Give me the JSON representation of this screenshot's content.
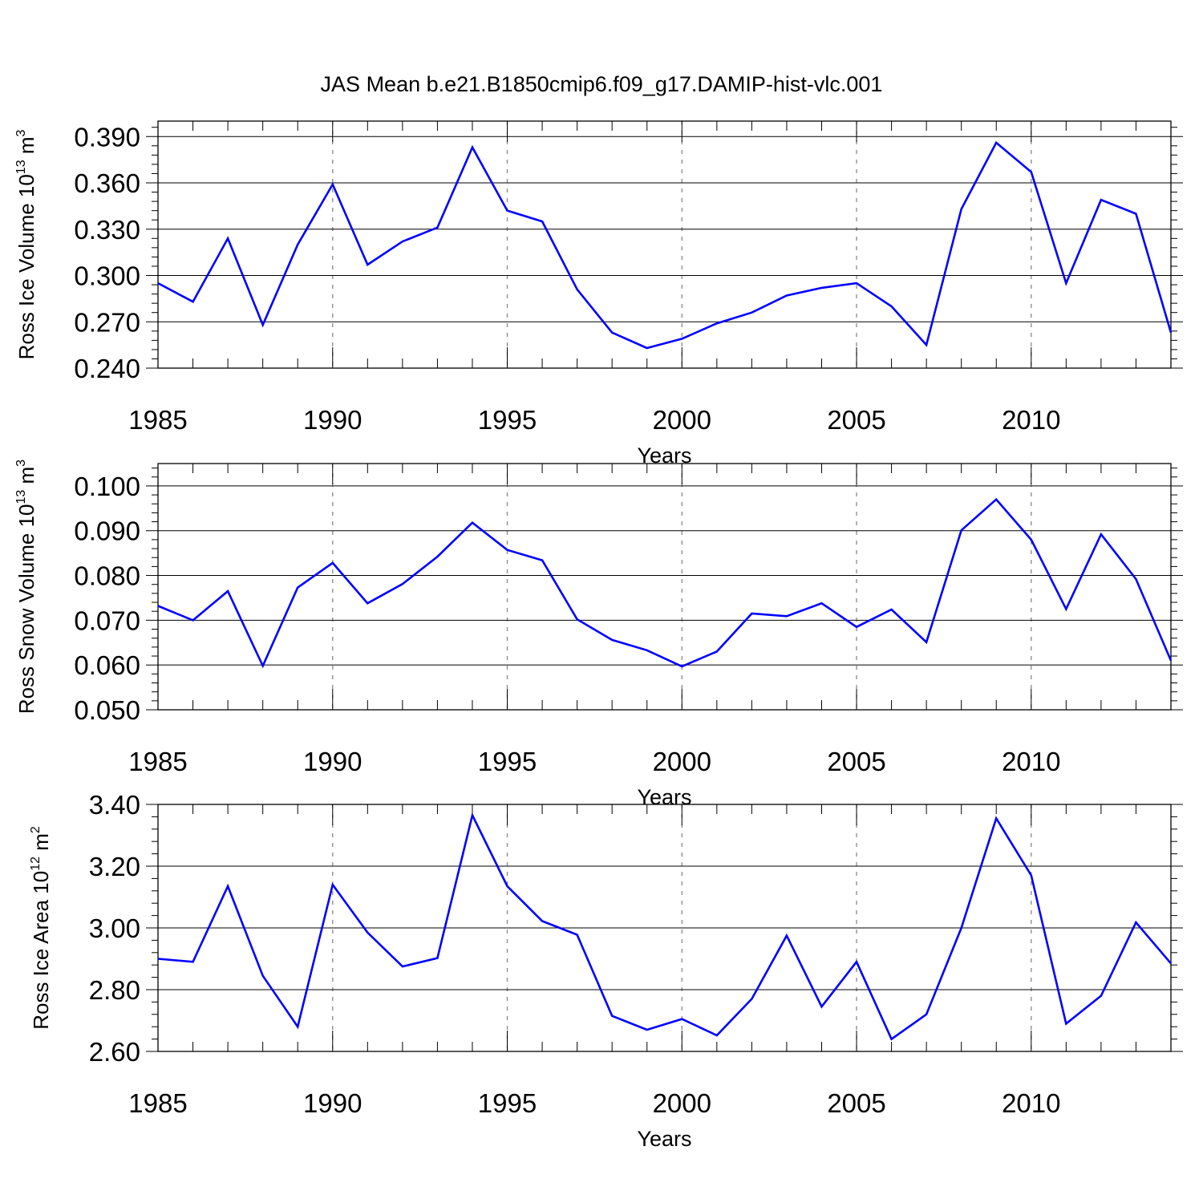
{
  "figure_title": "JAS Mean b.e21.B1850cmip6.f09_g17.DAMIP-hist-vlc.001",
  "colors": {
    "line": "#0000ff",
    "axis": "#000000",
    "grid": "#888888"
  },
  "chart_data": [
    {
      "type": "line",
      "ylabel": {
        "prefix": "Ross Ice Volume 10",
        "exp": "13",
        "unit": " m",
        "unit_exp": "3"
      },
      "xlabel": "Years",
      "xlim": [
        1985,
        2014
      ],
      "ylim": [
        0.24,
        0.4
      ],
      "yticks": [
        "0.240",
        "0.270",
        "0.300",
        "0.330",
        "0.360",
        "0.390"
      ],
      "xticks": [
        "1985",
        "1990",
        "1995",
        "2000",
        "2005",
        "2010"
      ],
      "grid": "vertical dashed at major x ticks",
      "x": [
        1985,
        1986,
        1987,
        1988,
        1989,
        1990,
        1991,
        1992,
        1993,
        1994,
        1995,
        1996,
        1997,
        1998,
        1999,
        2000,
        2001,
        2002,
        2003,
        2004,
        2005,
        2006,
        2007,
        2008,
        2009,
        2010,
        2011,
        2012,
        2013,
        2014
      ],
      "values": [
        0.295,
        0.283,
        0.324,
        0.268,
        0.32,
        0.359,
        0.307,
        0.322,
        0.331,
        0.383,
        0.342,
        0.335,
        0.291,
        0.263,
        0.253,
        0.259,
        0.269,
        0.276,
        0.287,
        0.292,
        0.295,
        0.28,
        0.255,
        0.343,
        0.386,
        0.367,
        0.295,
        0.349,
        0.34,
        0.263
      ]
    },
    {
      "type": "line",
      "ylabel": {
        "prefix": "Ross Snow Volume 10",
        "exp": "13",
        "unit": " m",
        "unit_exp": "3"
      },
      "xlabel": "Years",
      "xlim": [
        1985,
        2014
      ],
      "ylim": [
        0.05,
        0.105
      ],
      "yticks": [
        "0.050",
        "0.060",
        "0.070",
        "0.080",
        "0.090",
        "0.100"
      ],
      "xticks": [
        "1985",
        "1990",
        "1995",
        "2000",
        "2005",
        "2010"
      ],
      "grid": "vertical dashed at major x ticks",
      "x": [
        1985,
        1986,
        1987,
        1988,
        1989,
        1990,
        1991,
        1992,
        1993,
        1994,
        1995,
        1996,
        1997,
        1998,
        1999,
        2000,
        2001,
        2002,
        2003,
        2004,
        2005,
        2006,
        2007,
        2008,
        2009,
        2010,
        2011,
        2012,
        2013,
        2014
      ],
      "values": [
        0.0732,
        0.07,
        0.0765,
        0.0598,
        0.0773,
        0.0828,
        0.0738,
        0.0781,
        0.0842,
        0.0918,
        0.0857,
        0.0834,
        0.0702,
        0.0656,
        0.0633,
        0.0597,
        0.063,
        0.0715,
        0.0709,
        0.0738,
        0.0685,
        0.0724,
        0.0651,
        0.0901,
        0.097,
        0.088,
        0.0725,
        0.0892,
        0.0792,
        0.061
      ]
    },
    {
      "type": "line",
      "ylabel": {
        "prefix": "Ross Ice Area 10",
        "exp": "12",
        "unit": " m",
        "unit_exp": "2"
      },
      "xlabel": "Years",
      "xlim": [
        1985,
        2014
      ],
      "ylim": [
        2.6,
        3.4
      ],
      "yticks": [
        "2.60",
        "2.80",
        "3.00",
        "3.20",
        "3.40"
      ],
      "xticks": [
        "1985",
        "1990",
        "1995",
        "2000",
        "2005",
        "2010"
      ],
      "grid": "vertical dashed at major x ticks",
      "x": [
        1985,
        1986,
        1987,
        1988,
        1989,
        1990,
        1991,
        1992,
        1993,
        1994,
        1995,
        1996,
        1997,
        1998,
        1999,
        2000,
        2001,
        2002,
        2003,
        2004,
        2005,
        2006,
        2007,
        2008,
        2009,
        2010,
        2011,
        2012,
        2013,
        2014
      ],
      "values": [
        2.9,
        2.89,
        3.135,
        2.845,
        2.68,
        3.14,
        2.985,
        2.875,
        2.902,
        3.365,
        3.135,
        3.022,
        2.978,
        2.715,
        2.67,
        2.705,
        2.652,
        2.77,
        2.975,
        2.745,
        2.89,
        2.64,
        2.72,
        3.0,
        3.355,
        3.17,
        2.69,
        2.78,
        3.018,
        2.885
      ]
    }
  ]
}
